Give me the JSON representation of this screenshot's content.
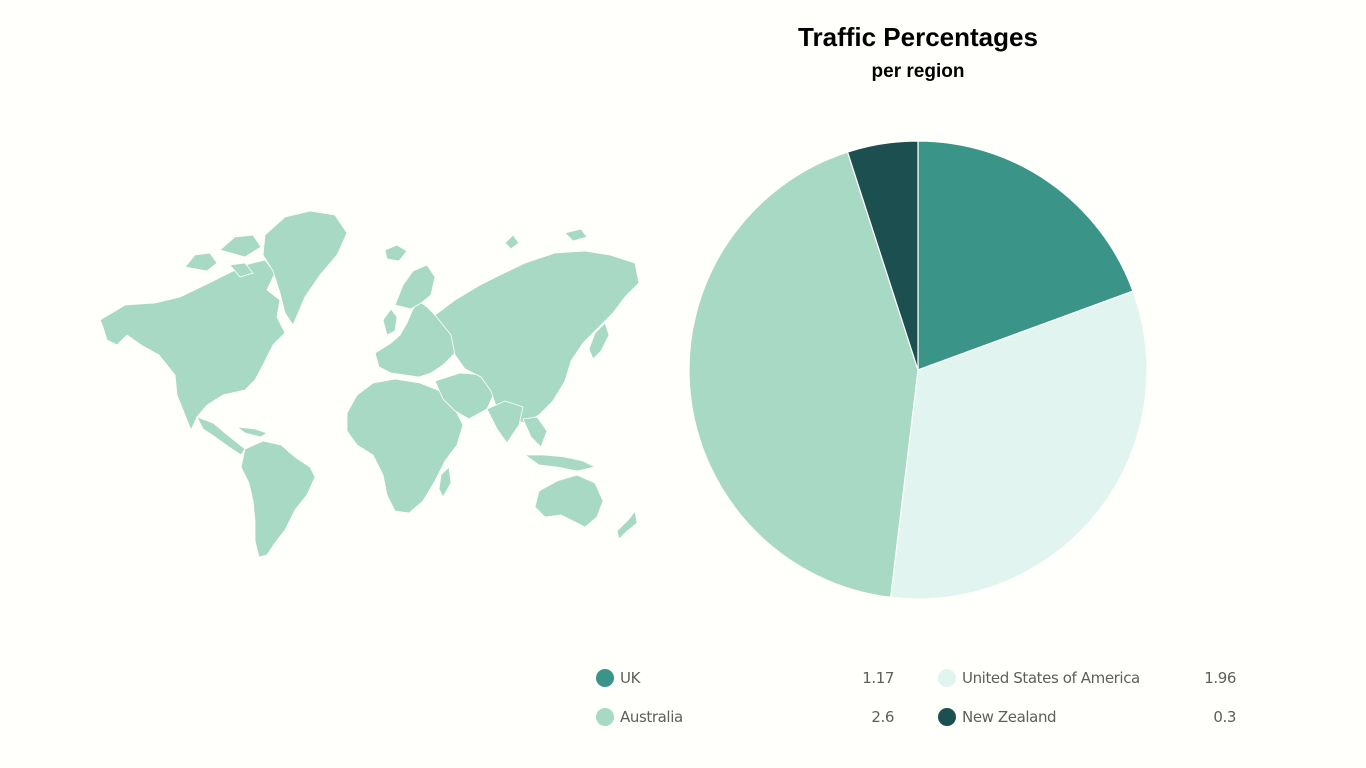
{
  "chart_data": {
    "type": "pie",
    "title": "Traffic Percentages",
    "subtitle": "per region",
    "categories": [
      "UK",
      "United States of America",
      "Australia",
      "New Zealand"
    ],
    "values": [
      1.17,
      1.96,
      2.6,
      0.3
    ],
    "colors": [
      "#3b9488",
      "#e2f4f0",
      "#a8d9c5",
      "#1c4f50"
    ],
    "value_labels": [
      "1.17",
      "1.96",
      "2.6",
      "0.3"
    ],
    "legend_position": "bottom",
    "start_angle_deg": 0,
    "direction": "clockwise"
  },
  "map": {
    "fill_color": "#a8d9c5",
    "border_color": "#ffffff"
  }
}
